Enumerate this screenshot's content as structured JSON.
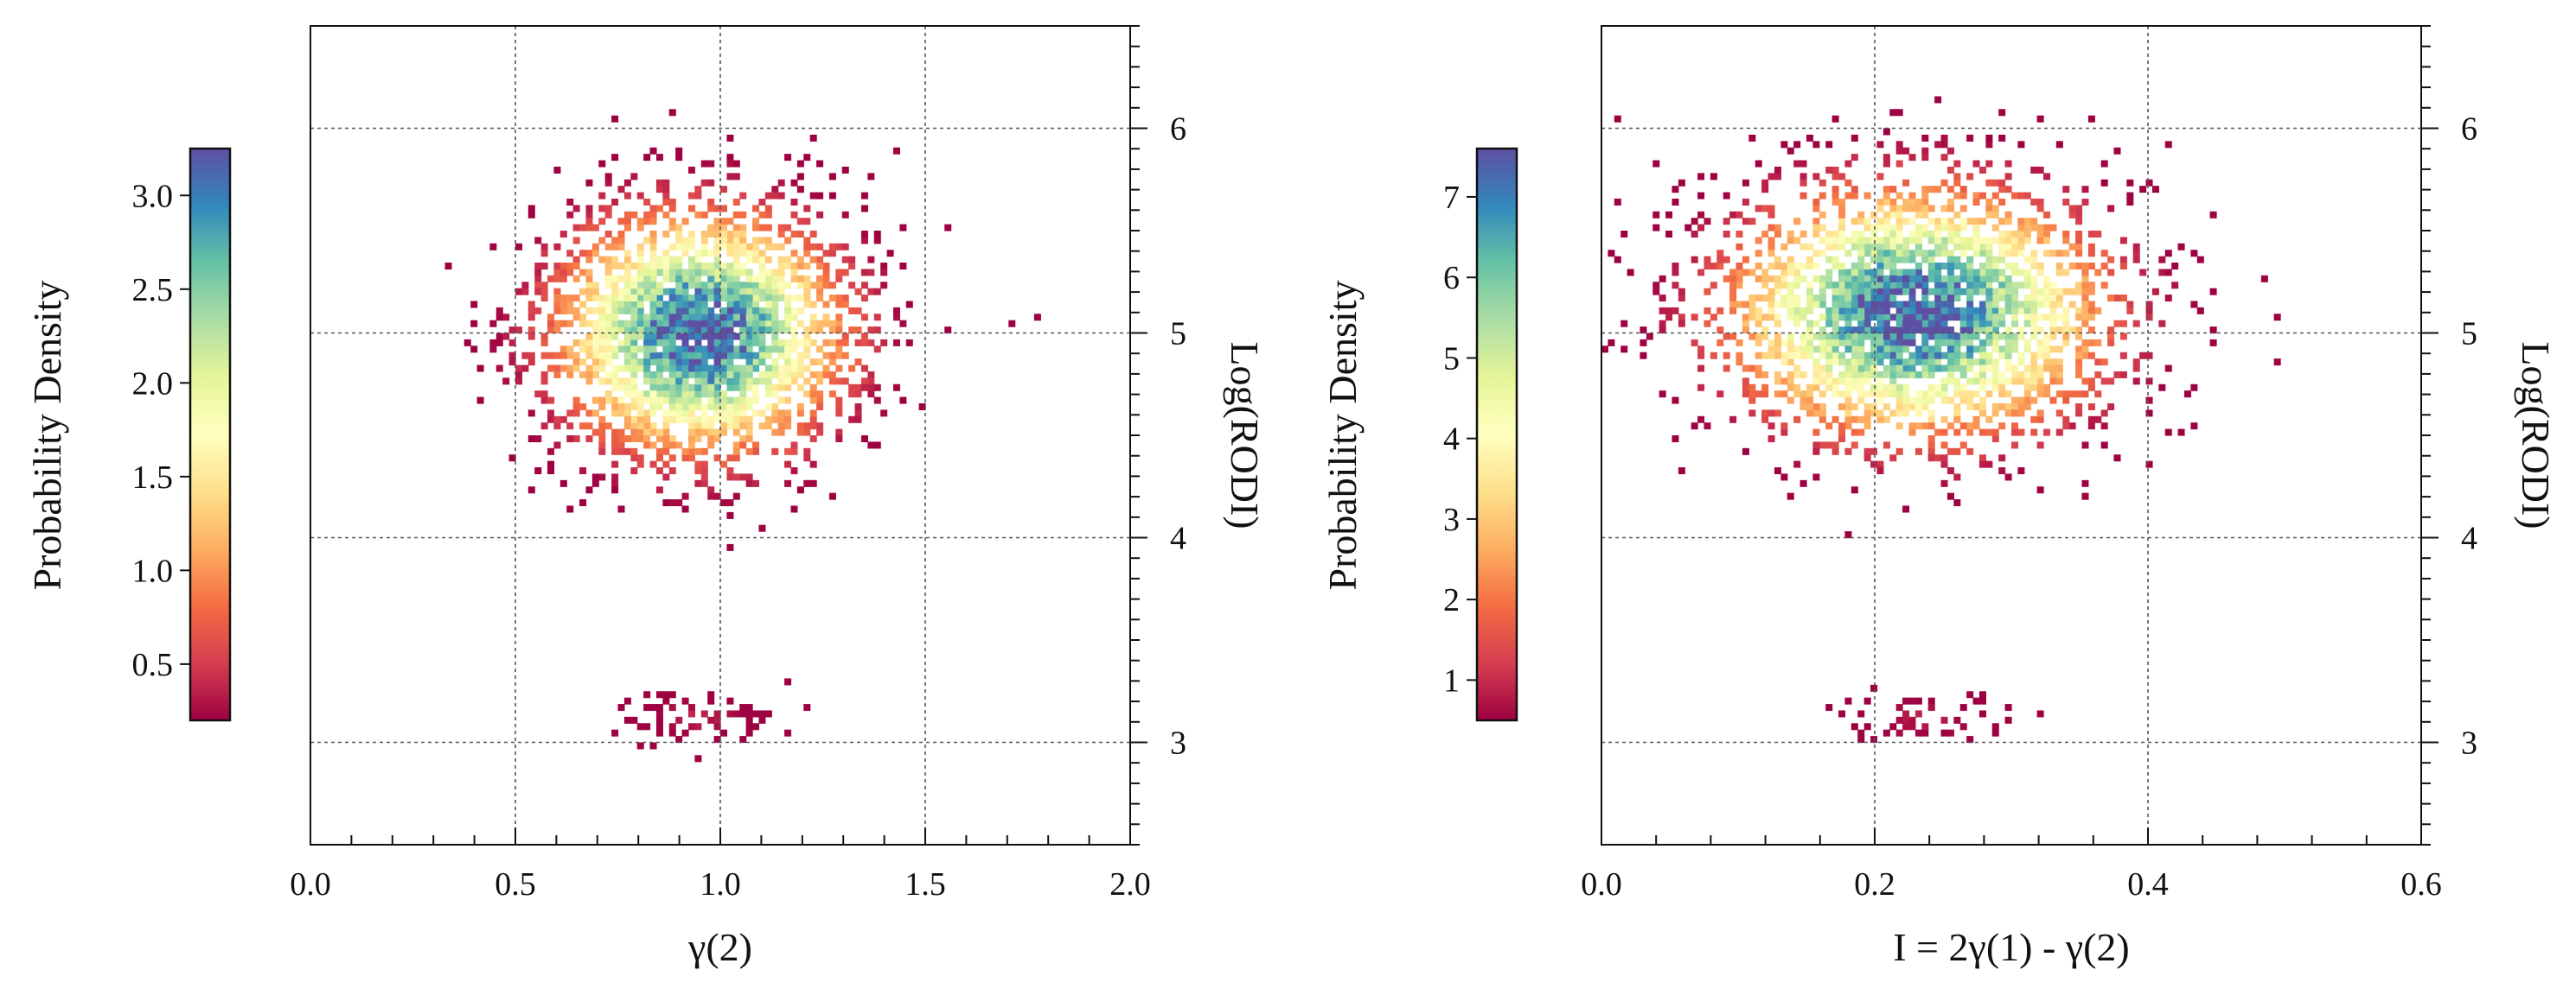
{
  "chart_data": [
    {
      "type": "heatmap",
      "xlabel": "γ(2)",
      "ylabel_right": "Log(RODI)",
      "colorbar_label": "Probability Density",
      "xlim": [
        0.0,
        2.0
      ],
      "ylim": [
        2.5,
        6.5
      ],
      "x_ticks": [
        0.0,
        0.5,
        1.0,
        1.5,
        2.0
      ],
      "x_tick_labels": [
        "0.0",
        "0.5",
        "1.0",
        "1.5",
        "2.0"
      ],
      "y_ticks": [
        3,
        4,
        5,
        6
      ],
      "y_tick_labels": [
        "3",
        "4",
        "5",
        "6"
      ],
      "colorbar_range": [
        0.2,
        3.25
      ],
      "colorbar_ticks": [
        0.5,
        1.0,
        1.5,
        2.0,
        2.5,
        3.0
      ],
      "colorbar_tick_labels": [
        "0.5",
        "1.0",
        "1.5",
        "2.0",
        "2.5",
        "3.0"
      ],
      "grid": true,
      "clusters": [
        {
          "cx": 0.95,
          "cy": 5.0,
          "sx": 0.19,
          "sy": 0.32,
          "peak": 3.2,
          "count": 2600
        },
        {
          "cx": 0.95,
          "cy": 3.12,
          "sx": 0.09,
          "sy": 0.07,
          "peak": 0.35,
          "count": 70
        }
      ]
    },
    {
      "type": "heatmap",
      "xlabel": "I = 2γ(1) - γ(2)",
      "ylabel_right": "Log(RODI)",
      "colorbar_label": "Probability Density",
      "xlim": [
        0.0,
        0.6
      ],
      "ylim": [
        2.5,
        6.5
      ],
      "x_ticks": [
        0.0,
        0.2,
        0.4,
        0.6
      ],
      "x_tick_labels": [
        "0.0",
        "0.2",
        "0.4",
        "0.6"
      ],
      "y_ticks": [
        3,
        4,
        5,
        6
      ],
      "y_tick_labels": [
        "3",
        "4",
        "5",
        "6"
      ],
      "colorbar_range": [
        0.5,
        7.6
      ],
      "colorbar_ticks": [
        1,
        2,
        3,
        4,
        5,
        6,
        7
      ],
      "colorbar_tick_labels": [
        "1",
        "2",
        "3",
        "4",
        "5",
        "6",
        "7"
      ],
      "grid": true,
      "clusters": [
        {
          "cx": 0.23,
          "cy": 5.1,
          "sx": 0.075,
          "sy": 0.33,
          "peak": 7.5,
          "count": 2600
        },
        {
          "cx": 0.235,
          "cy": 3.12,
          "sx": 0.035,
          "sy": 0.07,
          "peak": 0.8,
          "count": 60
        }
      ]
    }
  ]
}
